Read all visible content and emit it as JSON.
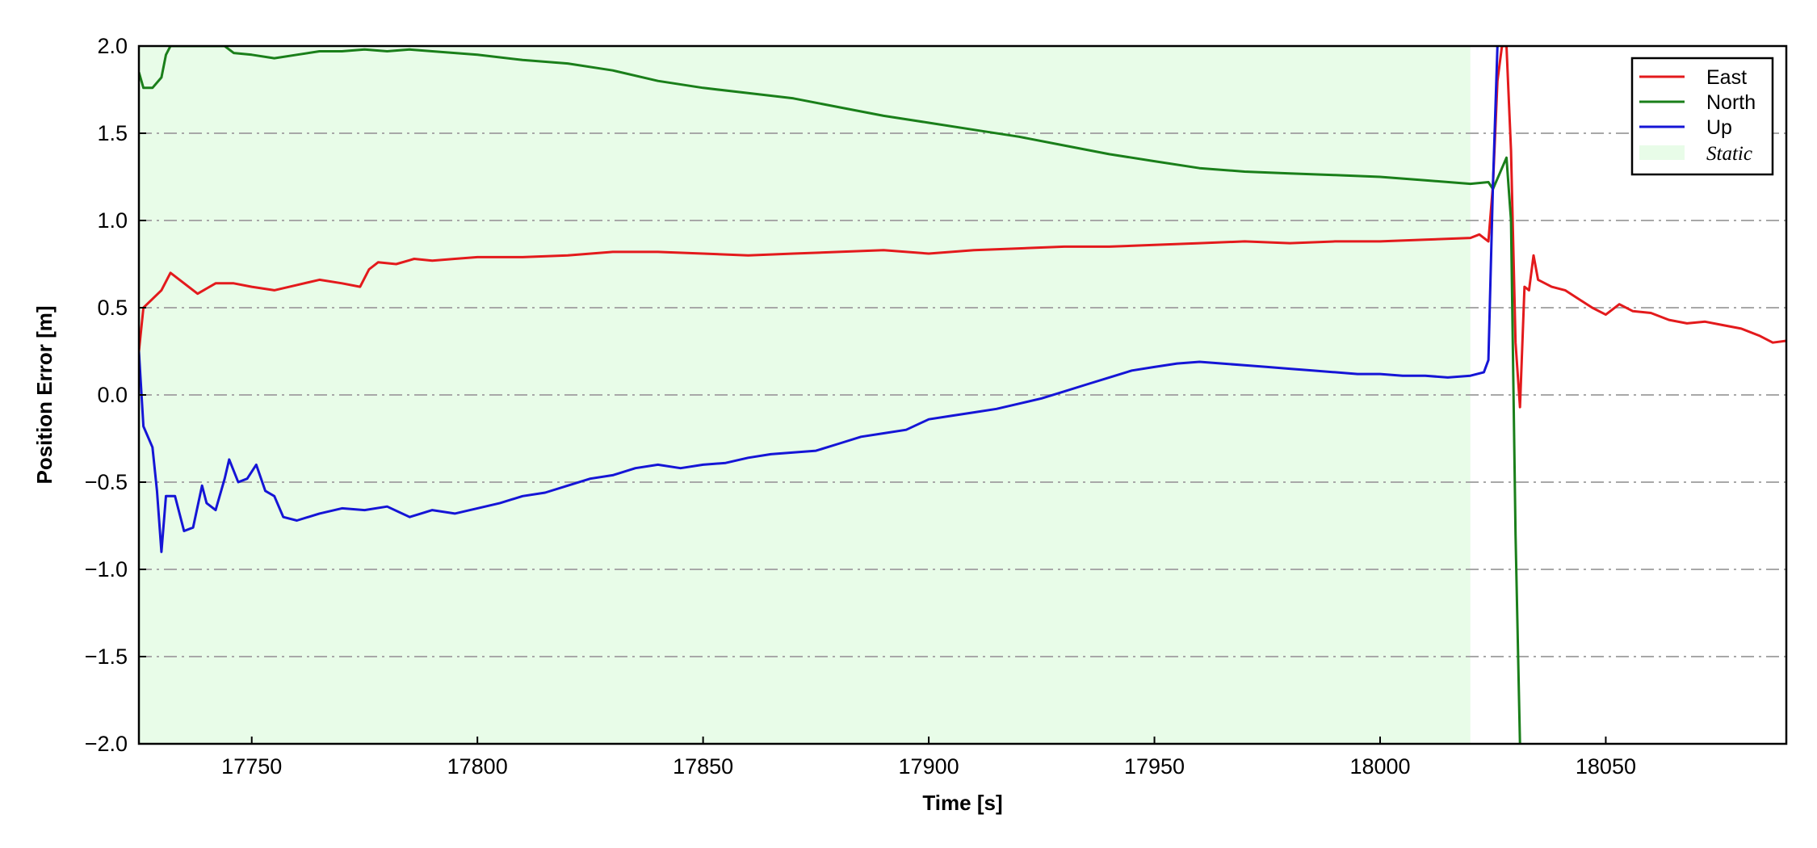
{
  "chart_data": {
    "type": "line",
    "xlabel": "Time [s]",
    "ylabel": "Position Error [m]",
    "xlim": [
      17725,
      18090
    ],
    "ylim": [
      -2.0,
      2.0
    ],
    "x_ticks": [
      17750,
      17800,
      17850,
      17900,
      17950,
      18000,
      18050
    ],
    "x_tick_labels": [
      "17750",
      "17800",
      "17850",
      "17900",
      "17950",
      "18000",
      "18050"
    ],
    "y_ticks": [
      -2.0,
      -1.5,
      -1.0,
      -0.5,
      0.0,
      0.5,
      1.0,
      1.5,
      2.0
    ],
    "y_tick_labels": [
      "−2.0",
      "−1.5",
      "−1.0",
      "−0.5",
      "0.0",
      "0.5",
      "1.0",
      "1.5",
      "2.0"
    ],
    "grid": "horizontal dash-dot",
    "legend_position": "top-right",
    "static_region": {
      "label": "Static",
      "x": [
        17725,
        18020
      ],
      "color": "#e8fce8"
    },
    "series": [
      {
        "name": "East",
        "color": "#e31a1c",
        "points": [
          [
            17725,
            0.25
          ],
          [
            17726,
            0.5
          ],
          [
            17728,
            0.55
          ],
          [
            17730,
            0.6
          ],
          [
            17732,
            0.7
          ],
          [
            17734,
            0.66
          ],
          [
            17736,
            0.62
          ],
          [
            17738,
            0.58
          ],
          [
            17742,
            0.64
          ],
          [
            17746,
            0.64
          ],
          [
            17750,
            0.62
          ],
          [
            17755,
            0.6
          ],
          [
            17760,
            0.63
          ],
          [
            17765,
            0.66
          ],
          [
            17770,
            0.64
          ],
          [
            17774,
            0.62
          ],
          [
            17776,
            0.72
          ],
          [
            17778,
            0.76
          ],
          [
            17782,
            0.75
          ],
          [
            17786,
            0.78
          ],
          [
            17790,
            0.77
          ],
          [
            17795,
            0.78
          ],
          [
            17800,
            0.79
          ],
          [
            17810,
            0.79
          ],
          [
            17820,
            0.8
          ],
          [
            17830,
            0.82
          ],
          [
            17840,
            0.82
          ],
          [
            17850,
            0.81
          ],
          [
            17860,
            0.8
          ],
          [
            17870,
            0.81
          ],
          [
            17880,
            0.82
          ],
          [
            17890,
            0.83
          ],
          [
            17900,
            0.81
          ],
          [
            17910,
            0.83
          ],
          [
            17920,
            0.84
          ],
          [
            17930,
            0.85
          ],
          [
            17940,
            0.85
          ],
          [
            17950,
            0.86
          ],
          [
            17960,
            0.87
          ],
          [
            17970,
            0.88
          ],
          [
            17980,
            0.87
          ],
          [
            17990,
            0.88
          ],
          [
            18000,
            0.88
          ],
          [
            18010,
            0.89
          ],
          [
            18020,
            0.9
          ],
          [
            18022,
            0.92
          ],
          [
            18024,
            0.88
          ],
          [
            18025,
            1.2
          ],
          [
            18026,
            1.8
          ],
          [
            18027,
            2.0
          ],
          [
            18028,
            2.0
          ],
          [
            18029,
            1.4
          ],
          [
            18030,
            0.3
          ],
          [
            18031,
            -0.07
          ],
          [
            18032,
            0.62
          ],
          [
            18033,
            0.6
          ],
          [
            18034,
            0.8
          ],
          [
            18035,
            0.66
          ],
          [
            18038,
            0.62
          ],
          [
            18041,
            0.6
          ],
          [
            18044,
            0.55
          ],
          [
            18047,
            0.5
          ],
          [
            18050,
            0.46
          ],
          [
            18053,
            0.52
          ],
          [
            18056,
            0.48
          ],
          [
            18060,
            0.47
          ],
          [
            18064,
            0.43
          ],
          [
            18068,
            0.41
          ],
          [
            18072,
            0.42
          ],
          [
            18076,
            0.4
          ],
          [
            18080,
            0.38
          ],
          [
            18084,
            0.34
          ],
          [
            18087,
            0.3
          ],
          [
            18090,
            0.31
          ]
        ]
      },
      {
        "name": "North",
        "color": "#1a7f1a",
        "points": [
          [
            17725,
            1.85
          ],
          [
            17726,
            1.76
          ],
          [
            17728,
            1.76
          ],
          [
            17730,
            1.82
          ],
          [
            17731,
            1.95
          ],
          [
            17732,
            2.0
          ],
          [
            17744,
            2.0
          ],
          [
            17746,
            1.96
          ],
          [
            17750,
            1.95
          ],
          [
            17755,
            1.93
          ],
          [
            17760,
            1.95
          ],
          [
            17765,
            1.97
          ],
          [
            17770,
            1.97
          ],
          [
            17775,
            1.98
          ],
          [
            17780,
            1.97
          ],
          [
            17785,
            1.98
          ],
          [
            17790,
            1.97
          ],
          [
            17800,
            1.95
          ],
          [
            17810,
            1.92
          ],
          [
            17820,
            1.9
          ],
          [
            17830,
            1.86
          ],
          [
            17840,
            1.8
          ],
          [
            17850,
            1.76
          ],
          [
            17860,
            1.73
          ],
          [
            17870,
            1.7
          ],
          [
            17880,
            1.65
          ],
          [
            17890,
            1.6
          ],
          [
            17900,
            1.56
          ],
          [
            17910,
            1.52
          ],
          [
            17920,
            1.48
          ],
          [
            17930,
            1.43
          ],
          [
            17940,
            1.38
          ],
          [
            17950,
            1.34
          ],
          [
            17960,
            1.3
          ],
          [
            17970,
            1.28
          ],
          [
            17980,
            1.27
          ],
          [
            17990,
            1.26
          ],
          [
            18000,
            1.25
          ],
          [
            18010,
            1.23
          ],
          [
            18020,
            1.21
          ],
          [
            18024,
            1.22
          ],
          [
            18025,
            1.18
          ],
          [
            18026,
            1.24
          ],
          [
            18027,
            1.3
          ],
          [
            18028,
            1.36
          ],
          [
            18029,
            1.0
          ],
          [
            18030,
            -0.8
          ],
          [
            18031,
            -2.0
          ]
        ]
      },
      {
        "name": "Up",
        "color": "#1515d6",
        "points": [
          [
            17725,
            0.25
          ],
          [
            17726,
            -0.18
          ],
          [
            17728,
            -0.3
          ],
          [
            17729,
            -0.55
          ],
          [
            17730,
            -0.9
          ],
          [
            17731,
            -0.58
          ],
          [
            17733,
            -0.58
          ],
          [
            17735,
            -0.78
          ],
          [
            17737,
            -0.76
          ],
          [
            17739,
            -0.52
          ],
          [
            17740,
            -0.62
          ],
          [
            17742,
            -0.66
          ],
          [
            17744,
            -0.48
          ],
          [
            17745,
            -0.37
          ],
          [
            17747,
            -0.5
          ],
          [
            17749,
            -0.48
          ],
          [
            17751,
            -0.4
          ],
          [
            17753,
            -0.55
          ],
          [
            17755,
            -0.58
          ],
          [
            17757,
            -0.7
          ],
          [
            17760,
            -0.72
          ],
          [
            17765,
            -0.68
          ],
          [
            17770,
            -0.65
          ],
          [
            17775,
            -0.66
          ],
          [
            17780,
            -0.64
          ],
          [
            17785,
            -0.7
          ],
          [
            17790,
            -0.66
          ],
          [
            17795,
            -0.68
          ],
          [
            17800,
            -0.65
          ],
          [
            17805,
            -0.62
          ],
          [
            17810,
            -0.58
          ],
          [
            17815,
            -0.56
          ],
          [
            17820,
            -0.52
          ],
          [
            17825,
            -0.48
          ],
          [
            17830,
            -0.46
          ],
          [
            17835,
            -0.42
          ],
          [
            17840,
            -0.4
          ],
          [
            17845,
            -0.42
          ],
          [
            17850,
            -0.4
          ],
          [
            17855,
            -0.39
          ],
          [
            17860,
            -0.36
          ],
          [
            17865,
            -0.34
          ],
          [
            17870,
            -0.33
          ],
          [
            17875,
            -0.32
          ],
          [
            17880,
            -0.28
          ],
          [
            17885,
            -0.24
          ],
          [
            17890,
            -0.22
          ],
          [
            17895,
            -0.2
          ],
          [
            17900,
            -0.14
          ],
          [
            17905,
            -0.12
          ],
          [
            17910,
            -0.1
          ],
          [
            17915,
            -0.08
          ],
          [
            17920,
            -0.05
          ],
          [
            17925,
            -0.02
          ],
          [
            17930,
            0.02
          ],
          [
            17935,
            0.06
          ],
          [
            17940,
            0.1
          ],
          [
            17945,
            0.14
          ],
          [
            17950,
            0.16
          ],
          [
            17955,
            0.18
          ],
          [
            17960,
            0.19
          ],
          [
            17965,
            0.18
          ],
          [
            17970,
            0.17
          ],
          [
            17975,
            0.16
          ],
          [
            17980,
            0.15
          ],
          [
            17985,
            0.14
          ],
          [
            17990,
            0.13
          ],
          [
            17995,
            0.12
          ],
          [
            18000,
            0.12
          ],
          [
            18005,
            0.11
          ],
          [
            18010,
            0.11
          ],
          [
            18015,
            0.1
          ],
          [
            18020,
            0.11
          ],
          [
            18023,
            0.13
          ],
          [
            18024,
            0.2
          ],
          [
            18025,
            1.2
          ],
          [
            18026,
            2.0
          ]
        ]
      }
    ]
  }
}
